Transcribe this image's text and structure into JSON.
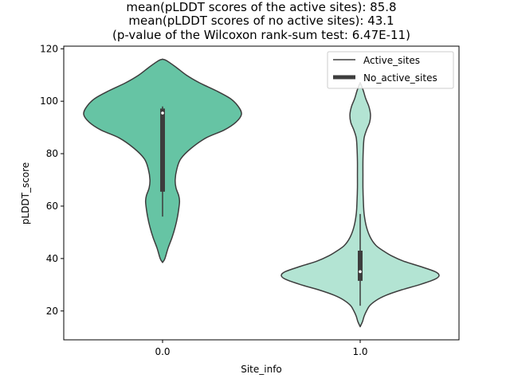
{
  "chart_data": {
    "type": "violin",
    "title_lines": [
      "mean(pLDDT scores of the active sites): 85.8",
      "mean(pLDDT scores of no active sites): 43.1",
      "(p-value of the Wilcoxon rank-sum test: 6.47E-11)"
    ],
    "xlabel": "Site_info",
    "ylabel": "pLDDT_score",
    "ylim": [
      9,
      121
    ],
    "yticks": [
      20,
      40,
      60,
      80,
      100,
      120
    ],
    "categories": [
      "0.0",
      "1.0"
    ],
    "legend": {
      "position": "top-right",
      "entries": [
        {
          "label": "Active_sites",
          "style": "thin-line"
        },
        {
          "label": "No_active_sites",
          "style": "thick-line"
        }
      ]
    },
    "colors": {
      "active": "#66c4a4",
      "no_active": "#b3e4d3",
      "edge": "#3d3d3d",
      "box": "#3d3d3d"
    },
    "series": [
      {
        "name": "Active_sites",
        "category": "0.0",
        "box": {
          "q1": 65.5,
          "median": 95.5,
          "q3": 97.2,
          "whisker_low": 56,
          "whisker_high": 98
        },
        "density": [
          [
            38.5,
            0.0
          ],
          [
            40,
            0.03
          ],
          [
            44,
            0.07
          ],
          [
            48,
            0.12
          ],
          [
            52,
            0.16
          ],
          [
            56,
            0.19
          ],
          [
            60,
            0.21
          ],
          [
            62,
            0.215
          ],
          [
            64,
            0.205
          ],
          [
            67,
            0.17
          ],
          [
            70,
            0.16
          ],
          [
            74,
            0.18
          ],
          [
            78,
            0.23
          ],
          [
            82,
            0.36
          ],
          [
            86,
            0.55
          ],
          [
            89,
            0.78
          ],
          [
            92,
            0.93
          ],
          [
            95,
            1.0
          ],
          [
            98,
            0.96
          ],
          [
            101,
            0.86
          ],
          [
            104,
            0.68
          ],
          [
            107,
            0.47
          ],
          [
            110,
            0.3
          ],
          [
            113,
            0.17
          ],
          [
            115.5,
            0.05
          ],
          [
            116,
            0.0
          ]
        ]
      },
      {
        "name": "No_active_sites",
        "category": "1.0",
        "box": {
          "q1": 31.5,
          "median": 35,
          "q3": 43,
          "whisker_low": 22,
          "whisker_high": 57
        },
        "density": [
          [
            14,
            0.0
          ],
          [
            16,
            0.03
          ],
          [
            18,
            0.05
          ],
          [
            20,
            0.08
          ],
          [
            22,
            0.12
          ],
          [
            24,
            0.2
          ],
          [
            26,
            0.33
          ],
          [
            28,
            0.52
          ],
          [
            30,
            0.75
          ],
          [
            32,
            0.94
          ],
          [
            33.5,
            1.0
          ],
          [
            35,
            0.95
          ],
          [
            37,
            0.76
          ],
          [
            39,
            0.55
          ],
          [
            41,
            0.4
          ],
          [
            43,
            0.29
          ],
          [
            45,
            0.2
          ],
          [
            48,
            0.13
          ],
          [
            52,
            0.08
          ],
          [
            57,
            0.05
          ],
          [
            62,
            0.04
          ],
          [
            67,
            0.035
          ],
          [
            72,
            0.035
          ],
          [
            77,
            0.035
          ],
          [
            82,
            0.04
          ],
          [
            86,
            0.05
          ],
          [
            89,
            0.08
          ],
          [
            92,
            0.12
          ],
          [
            95,
            0.13
          ],
          [
            98,
            0.11
          ],
          [
            101,
            0.07
          ],
          [
            104,
            0.04
          ],
          [
            106,
            0.015
          ],
          [
            107,
            0.0
          ]
        ]
      }
    ]
  }
}
